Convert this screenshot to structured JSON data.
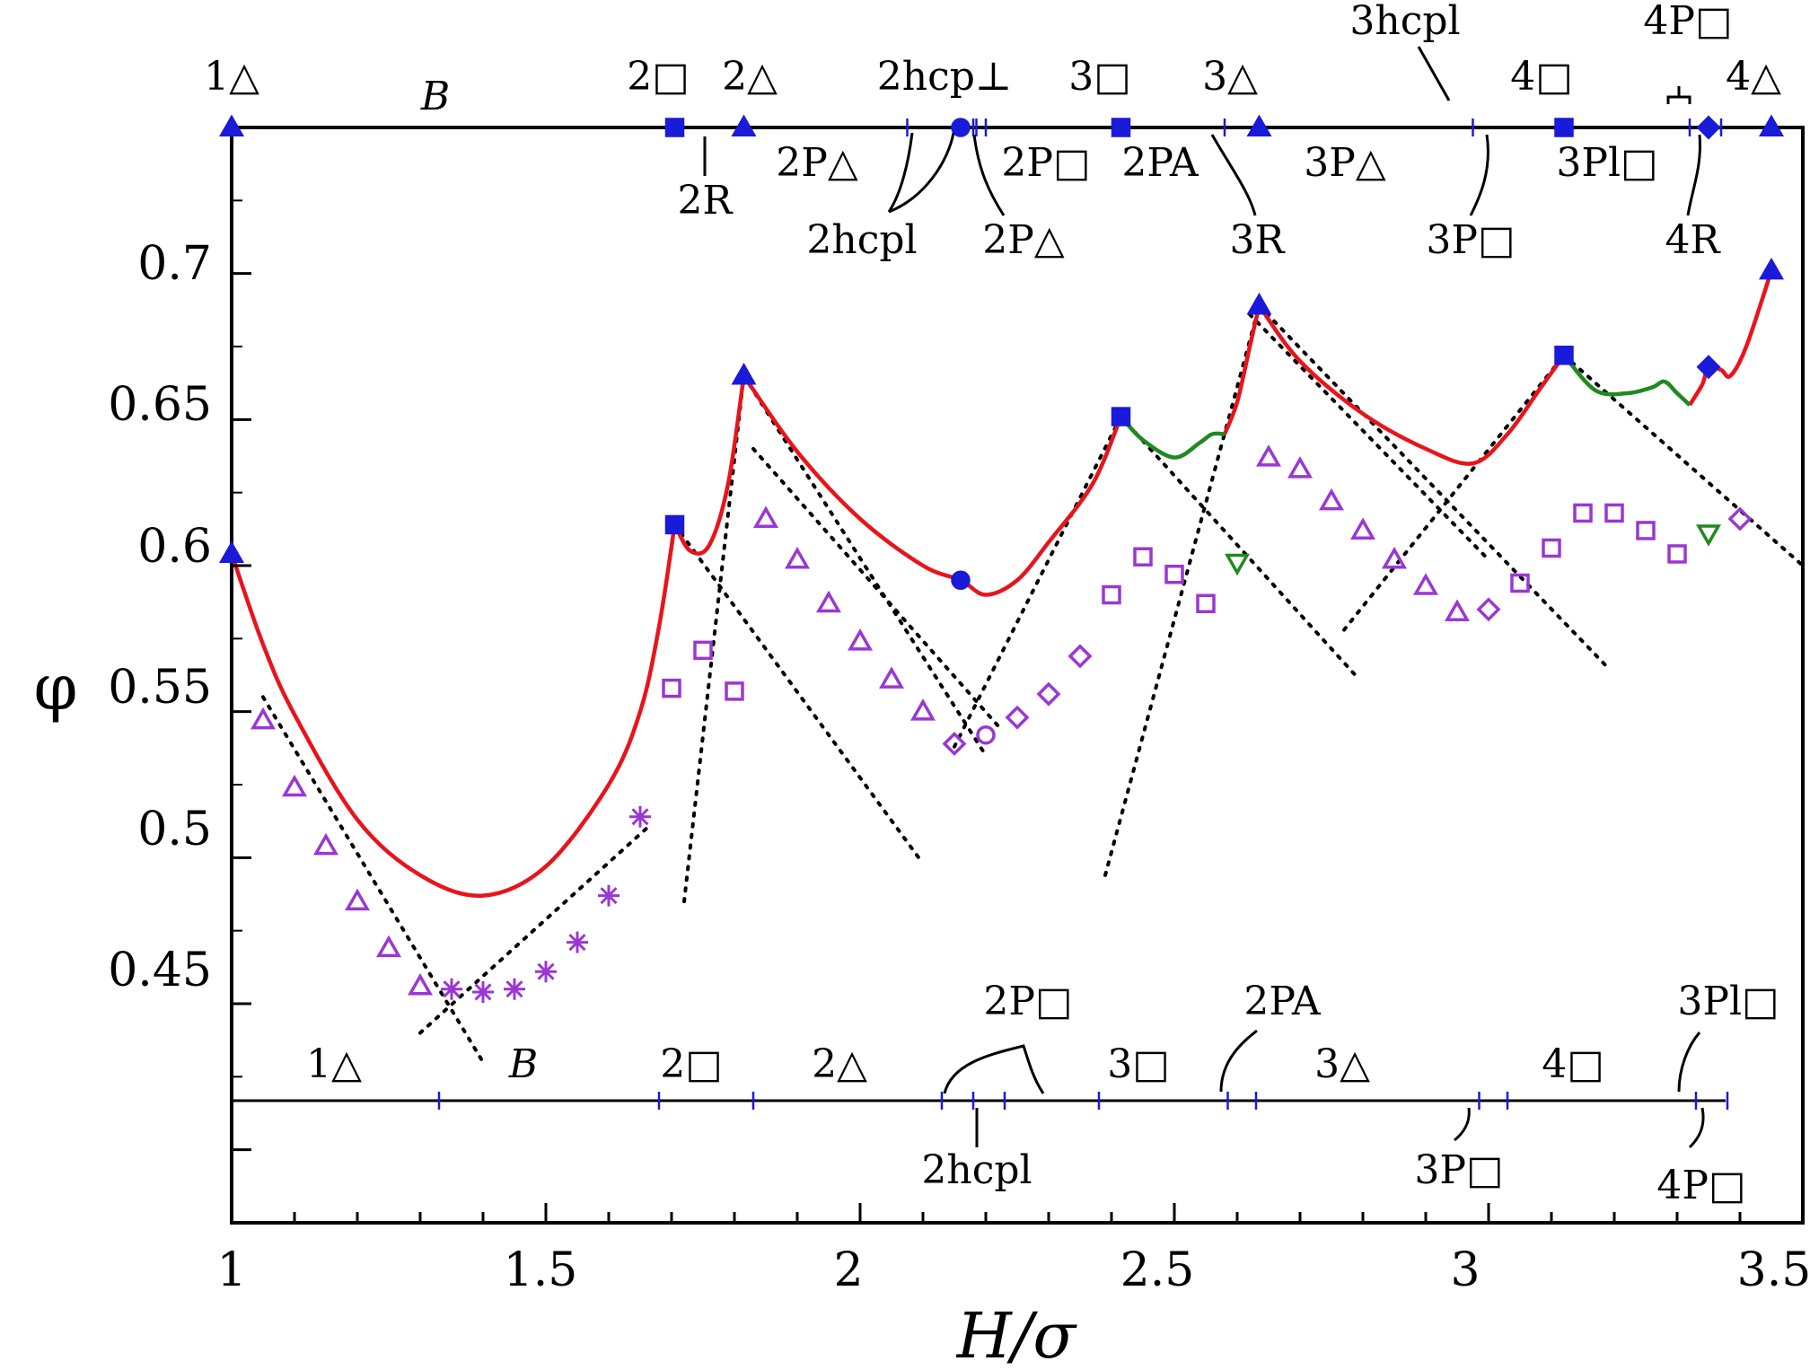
{
  "chart_data": {
    "type": "line",
    "xlabel": "H/σ",
    "ylabel": "φ",
    "xlim": [
      1.0,
      3.5
    ],
    "ylim": [
      0.375,
      0.75
    ],
    "xticks": [
      "1",
      "1.5",
      "2",
      "2.5",
      "3",
      "3.5"
    ],
    "yticks": [
      "0.45",
      "0.5",
      "0.55",
      "0.6",
      "0.65",
      "0.7"
    ],
    "colors": {
      "red": "#e8141c",
      "green": "#1f8a1f",
      "purple": "#9a37d4",
      "blue": "#1a1adb",
      "black": "#000000"
    },
    "top_strip": {
      "breakpoints": [
        1.0,
        1.705,
        1.815,
        2.075,
        2.16,
        2.18,
        2.185,
        2.2,
        2.415,
        2.58,
        2.635,
        2.975,
        3.12,
        3.32,
        3.35,
        3.37,
        3.45
      ],
      "markers": [
        {
          "x": 1.0,
          "shape": "triangle"
        },
        {
          "x": 1.705,
          "shape": "square"
        },
        {
          "x": 1.815,
          "shape": "triangle"
        },
        {
          "x": 2.16,
          "shape": "circle"
        },
        {
          "x": 2.415,
          "shape": "square"
        },
        {
          "x": 2.635,
          "shape": "triangle"
        },
        {
          "x": 3.12,
          "shape": "square"
        },
        {
          "x": 3.35,
          "shape": "diamond"
        },
        {
          "x": 3.45,
          "shape": "triangle"
        }
      ],
      "labels": {
        "t1": "1△",
        "B": "B",
        "t2s": "2□",
        "t2t": "2△",
        "t2hcpperp": "2hcp⊥",
        "t3s": "3□",
        "t3t": "3△",
        "t3hcpl": "3hcpl",
        "t4s": "4□",
        "t4P": "4P□",
        "t4t": "4△",
        "t2R": "2R",
        "t2Pt": "2P△",
        "t2hcpl": "2hcpl",
        "t2Pt2": "2P△",
        "t2Ps": "2P□",
        "t2PA": "2PA",
        "t3R": "3R",
        "t3Pt": "3P△",
        "t3Ps": "3P□",
        "t3Pl": "3Pl□",
        "t4R": "4R"
      }
    },
    "bottom_strip": {
      "breakpoints": [
        1.33,
        1.68,
        1.83,
        2.13,
        2.18,
        2.23,
        2.38,
        2.585,
        2.63,
        2.985,
        3.03,
        3.33,
        3.38
      ],
      "labels": {
        "b1t": "1△",
        "bB": "B",
        "b2s": "2□",
        "b2t": "2△",
        "b2Ps": "2P□",
        "b3s": "3□",
        "b2PA": "2PA",
        "b3t": "3△",
        "b4s": "4□",
        "b3Pl": "3Pl□",
        "b2hcpl": "2hcpl",
        "b3Ps": "3P□",
        "b4Ps": "4P□"
      }
    },
    "series": [
      {
        "color": "red",
        "style": "line",
        "segments": [
          {
            "x": [
              1.0,
              1.05,
              1.1,
              1.2,
              1.3,
              1.4,
              1.5,
              1.6,
              1.65,
              1.68,
              1.705
            ],
            "y": [
              0.604,
              0.573,
              0.549,
              0.513,
              0.494,
              0.487,
              0.497,
              0.525,
              0.55,
              0.579,
              0.614
            ]
          },
          {
            "x": [
              1.705,
              1.73,
              1.76,
              1.79,
              1.815
            ],
            "y": [
              0.614,
              0.605,
              0.607,
              0.628,
              0.665
            ]
          },
          {
            "x": [
              1.815,
              1.9,
              2.0,
              2.1,
              2.16,
              2.2,
              2.25,
              2.3,
              2.37,
              2.415
            ],
            "y": [
              0.665,
              0.639,
              0.616,
              0.6,
              0.595,
              0.59,
              0.595,
              0.608,
              0.628,
              0.651
            ]
          },
          {
            "x": [
              2.58,
              2.6,
              2.62,
              2.635
            ],
            "y": [
              0.645,
              0.656,
              0.675,
              0.689
            ]
          },
          {
            "x": [
              2.635,
              2.7,
              2.8,
              2.9,
              2.975,
              3.03,
              3.08,
              3.12
            ],
            "y": [
              0.689,
              0.67,
              0.652,
              0.64,
              0.635,
              0.645,
              0.66,
              0.672
            ]
          },
          {
            "x": [
              3.32,
              3.34,
              3.35,
              3.37,
              3.385,
              3.41,
              3.45
            ],
            "y": [
              0.655,
              0.662,
              0.668,
              0.667,
              0.665,
              0.675,
              0.701
            ]
          }
        ]
      },
      {
        "color": "green",
        "style": "line",
        "segments": [
          {
            "x": [
              2.415,
              2.45,
              2.5,
              2.54,
              2.56,
              2.58
            ],
            "y": [
              0.651,
              0.643,
              0.637,
              0.642,
              0.645,
              0.645
            ]
          },
          {
            "x": [
              3.12,
              3.17,
              3.22,
              3.26,
              3.28,
              3.3,
              3.32
            ],
            "y": [
              0.672,
              0.66,
              0.659,
              0.661,
              0.663,
              0.659,
              0.655
            ]
          }
        ]
      },
      {
        "color": "black",
        "style": "dotted",
        "segments": [
          {
            "x": [
              1.05,
              1.4
            ],
            "y": [
              0.555,
              0.43
            ]
          },
          {
            "x": [
              1.3,
              1.66
            ],
            "y": [
              0.44,
              0.51
            ]
          },
          {
            "x": [
              1.705,
              2.1
            ],
            "y": [
              0.614,
              0.498
            ]
          },
          {
            "x": [
              1.72,
              1.815
            ],
            "y": [
              0.485,
              0.665
            ]
          },
          {
            "x": [
              1.815,
              2.2
            ],
            "y": [
              0.665,
              0.535
            ]
          },
          {
            "x": [
              1.83,
              2.22
            ],
            "y": [
              0.64,
              0.545
            ]
          },
          {
            "x": [
              2.15,
              2.415
            ],
            "y": [
              0.538,
              0.651
            ]
          },
          {
            "x": [
              2.39,
              2.635
            ],
            "y": [
              0.494,
              0.689
            ]
          },
          {
            "x": [
              2.415,
              2.79
            ],
            "y": [
              0.651,
              0.562
            ]
          },
          {
            "x": [
              2.635,
              3.19
            ],
            "y": [
              0.689,
              0.565
            ]
          },
          {
            "x": [
              2.77,
              3.12
            ],
            "y": [
              0.578,
              0.672
            ]
          },
          {
            "x": [
              2.62,
              3.0
            ],
            "y": [
              0.686,
              0.602
            ]
          },
          {
            "x": [
              3.12,
              3.5
            ],
            "y": [
              0.672,
              0.6
            ]
          }
        ]
      }
    ],
    "scatter": [
      {
        "color": "purple",
        "marker": "triangle-up",
        "x": [
          1.05,
          1.1,
          1.15,
          1.2,
          1.25,
          1.3
        ],
        "y": [
          0.547,
          0.524,
          0.504,
          0.485,
          0.469,
          0.456
        ]
      },
      {
        "color": "purple",
        "marker": "asterisk",
        "x": [
          1.35,
          1.4,
          1.45,
          1.5,
          1.55,
          1.6,
          1.65
        ],
        "y": [
          0.455,
          0.454,
          0.455,
          0.461,
          0.471,
          0.487,
          0.514
        ]
      },
      {
        "color": "purple",
        "marker": "square",
        "x": [
          1.7,
          1.75,
          1.8
        ],
        "y": [
          0.558,
          0.571,
          0.557
        ]
      },
      {
        "color": "purple",
        "marker": "triangle-up",
        "x": [
          1.85,
          1.9,
          1.95,
          2.0,
          2.05,
          2.1
        ],
        "y": [
          0.616,
          0.602,
          0.587,
          0.574,
          0.561,
          0.55
        ]
      },
      {
        "color": "purple",
        "marker": "diamond",
        "x": [
          2.15,
          2.25,
          2.3,
          2.35
        ],
        "y": [
          0.539,
          0.548,
          0.556,
          0.569
        ]
      },
      {
        "color": "purple",
        "marker": "circle",
        "x": [
          2.2
        ],
        "y": [
          0.542
        ]
      },
      {
        "color": "purple",
        "marker": "square",
        "x": [
          2.4,
          2.45,
          2.5,
          2.55
        ],
        "y": [
          0.59,
          0.603,
          0.597,
          0.587
        ]
      },
      {
        "color": "green",
        "marker": "triangle-down",
        "x": [
          2.6,
          3.35
        ],
        "y": [
          0.601,
          0.611
        ]
      },
      {
        "color": "purple",
        "marker": "triangle-up",
        "x": [
          2.65,
          2.7,
          2.75,
          2.8,
          2.85,
          2.9,
          2.95
        ],
        "y": [
          0.637,
          0.633,
          0.622,
          0.612,
          0.602,
          0.593,
          0.584
        ]
      },
      {
        "color": "purple",
        "marker": "diamond",
        "x": [
          3.0
        ],
        "y": [
          0.585
        ]
      },
      {
        "color": "purple",
        "marker": "square",
        "x": [
          3.05,
          3.1,
          3.15,
          3.2,
          3.25,
          3.3
        ],
        "y": [
          0.594,
          0.606,
          0.618,
          0.618,
          0.612,
          0.604
        ]
      },
      {
        "color": "purple",
        "marker": "diamond",
        "x": [
          3.4
        ],
        "y": [
          0.616
        ]
      }
    ]
  }
}
